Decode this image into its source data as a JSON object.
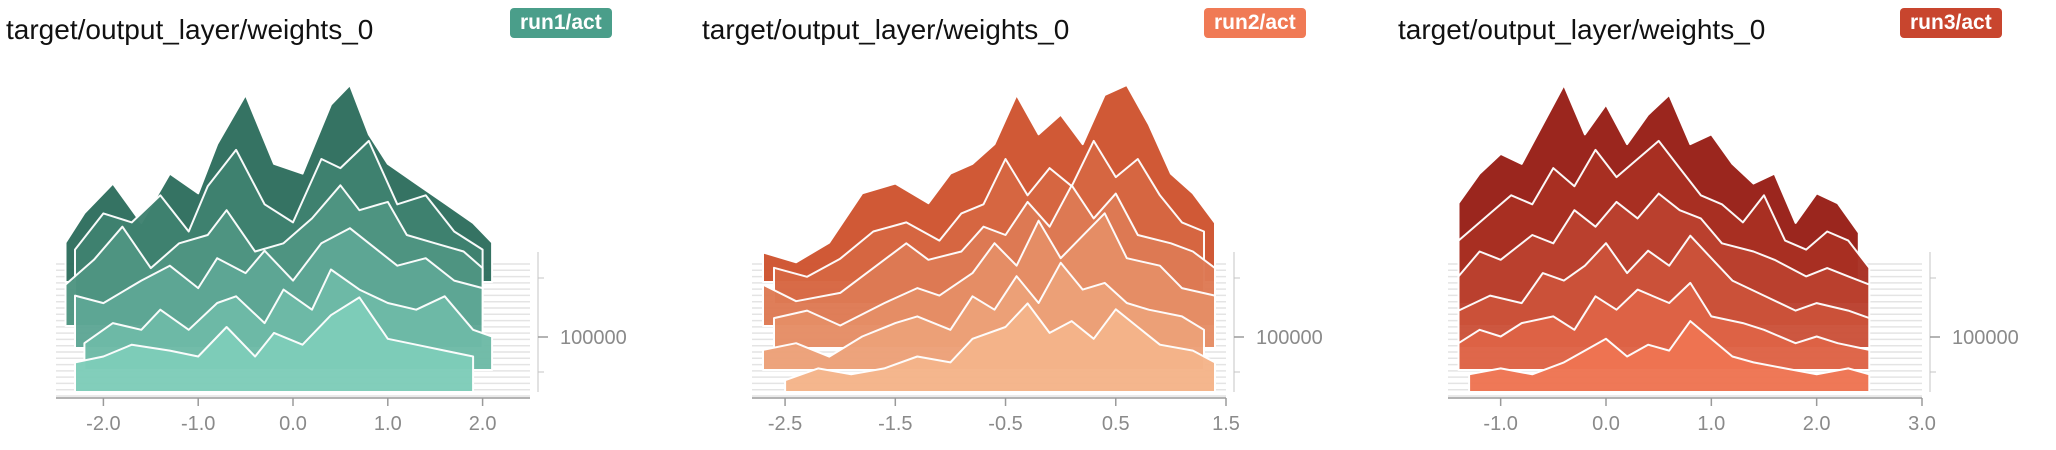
{
  "panels": [
    {
      "title": "target/output_layer/weights_0",
      "badge": "run1/act",
      "badge_color": "#4a9e8a",
      "color_back": "#2f6f5e",
      "color_front": "#7ecdb9"
    },
    {
      "title": "target/output_layer/weights_0",
      "badge": "run2/act",
      "badge_color": "#f07a55",
      "color_back": "#cf5430",
      "color_front": "#f5b48a"
    },
    {
      "title": "target/output_layer/weights_0",
      "badge": "run3/act",
      "badge_color": "#c8452e",
      "color_back": "#981f17",
      "color_front": "#ef7452"
    }
  ],
  "chart_data": [
    {
      "type": "area",
      "title": "target/output_layer/weights_0",
      "run": "run1/act",
      "x_ticks": [
        "-2.0",
        "-1.0",
        "0.0",
        "1.0",
        "2.0"
      ],
      "x_tick_values": [
        -2.0,
        -1.0,
        0.0,
        1.0,
        2.0
      ],
      "xlim": [
        -2.5,
        2.5
      ],
      "y_tick_labels": [
        "100000"
      ],
      "y_tick_values": [
        100000
      ],
      "ylim": [
        0,
        200000
      ],
      "series": [
        {
          "x": [
            -2.4,
            -2.2,
            -1.9,
            -1.6,
            -1.3,
            -1.0,
            -0.8,
            -0.5,
            -0.2,
            0.1,
            0.4,
            0.6,
            0.8,
            1.0,
            1.3,
            1.6,
            1.9,
            2.1
          ],
          "values": [
            0.2,
            0.35,
            0.5,
            0.3,
            0.55,
            0.45,
            0.7,
            0.95,
            0.6,
            0.55,
            0.9,
            1.0,
            0.75,
            0.6,
            0.5,
            0.4,
            0.3,
            0.2
          ]
        },
        {
          "x": [
            -2.3,
            -2.0,
            -1.7,
            -1.4,
            -1.1,
            -0.9,
            -0.6,
            -0.3,
            0.0,
            0.3,
            0.5,
            0.8,
            1.1,
            1.4,
            1.7,
            2.0
          ],
          "values": [
            0.3,
            0.5,
            0.45,
            0.6,
            0.4,
            0.65,
            0.85,
            0.55,
            0.45,
            0.8,
            0.75,
            0.9,
            0.55,
            0.6,
            0.4,
            0.3
          ]
        },
        {
          "x": [
            -2.4,
            -2.1,
            -1.8,
            -1.5,
            -1.2,
            -0.9,
            -0.7,
            -0.4,
            -0.1,
            0.2,
            0.5,
            0.7,
            1.0,
            1.2,
            1.5,
            1.8,
            2.0
          ],
          "values": [
            0.25,
            0.4,
            0.6,
            0.35,
            0.5,
            0.55,
            0.7,
            0.45,
            0.5,
            0.65,
            0.85,
            0.7,
            0.75,
            0.55,
            0.5,
            0.45,
            0.35
          ]
        },
        {
          "x": [
            -2.3,
            -2.0,
            -1.6,
            -1.3,
            -1.0,
            -0.8,
            -0.5,
            -0.3,
            0.0,
            0.3,
            0.6,
            0.9,
            1.1,
            1.4,
            1.7,
            2.0
          ],
          "values": [
            0.35,
            0.3,
            0.45,
            0.55,
            0.4,
            0.6,
            0.5,
            0.65,
            0.45,
            0.7,
            0.8,
            0.65,
            0.55,
            0.6,
            0.45,
            0.4
          ]
        },
        {
          "x": [
            -2.2,
            -1.9,
            -1.6,
            -1.4,
            -1.1,
            -0.8,
            -0.6,
            -0.3,
            -0.1,
            0.2,
            0.4,
            0.7,
            1.0,
            1.3,
            1.6,
            1.9,
            2.1
          ],
          "values": [
            0.2,
            0.35,
            0.3,
            0.45,
            0.3,
            0.5,
            0.55,
            0.35,
            0.6,
            0.45,
            0.75,
            0.6,
            0.5,
            0.45,
            0.55,
            0.3,
            0.25
          ]
        },
        {
          "x": [
            -2.3,
            -2.0,
            -1.7,
            -1.3,
            -1.0,
            -0.7,
            -0.4,
            -0.2,
            0.1,
            0.4,
            0.7,
            1.0,
            1.3,
            1.6,
            1.9
          ],
          "values": [
            0.25,
            0.3,
            0.4,
            0.35,
            0.3,
            0.55,
            0.3,
            0.5,
            0.4,
            0.65,
            0.8,
            0.45,
            0.4,
            0.35,
            0.3
          ]
        }
      ]
    },
    {
      "type": "area",
      "title": "target/output_layer/weights_0",
      "run": "run2/act",
      "x_ticks": [
        "-2.5",
        "-1.5",
        "-0.5",
        "0.5",
        "1.5"
      ],
      "x_tick_values": [
        -2.5,
        -1.5,
        -0.5,
        0.5,
        1.5
      ],
      "xlim": [
        -2.8,
        1.5
      ],
      "y_tick_labels": [
        "100000"
      ],
      "y_tick_values": [
        100000
      ],
      "ylim": [
        0,
        200000
      ],
      "series": [
        {
          "x": [
            -2.7,
            -2.4,
            -2.1,
            -1.8,
            -1.5,
            -1.2,
            -1.0,
            -0.8,
            -0.6,
            -0.4,
            -0.2,
            0.0,
            0.2,
            0.4,
            0.6,
            0.8,
            1.0,
            1.2,
            1.4
          ],
          "values": [
            0.15,
            0.1,
            0.2,
            0.45,
            0.5,
            0.4,
            0.55,
            0.6,
            0.7,
            0.95,
            0.75,
            0.85,
            0.7,
            0.95,
            1.0,
            0.8,
            0.55,
            0.45,
            0.3
          ]
        },
        {
          "x": [
            -2.6,
            -2.3,
            -2.0,
            -1.7,
            -1.4,
            -1.1,
            -0.9,
            -0.7,
            -0.5,
            -0.3,
            -0.1,
            0.1,
            0.3,
            0.5,
            0.7,
            0.9,
            1.1,
            1.3
          ],
          "values": [
            0.2,
            0.15,
            0.25,
            0.4,
            0.45,
            0.35,
            0.5,
            0.55,
            0.8,
            0.6,
            0.75,
            0.65,
            0.9,
            0.7,
            0.8,
            0.6,
            0.45,
            0.4
          ]
        },
        {
          "x": [
            -2.7,
            -2.4,
            -2.0,
            -1.7,
            -1.4,
            -1.2,
            -0.9,
            -0.7,
            -0.5,
            -0.3,
            -0.1,
            0.1,
            0.3,
            0.5,
            0.7,
            1.0,
            1.2,
            1.4
          ],
          "values": [
            0.25,
            0.15,
            0.2,
            0.35,
            0.5,
            0.4,
            0.45,
            0.6,
            0.55,
            0.75,
            0.6,
            0.85,
            0.65,
            0.8,
            0.55,
            0.5,
            0.45,
            0.35
          ]
        },
        {
          "x": [
            -2.6,
            -2.3,
            -2.0,
            -1.6,
            -1.3,
            -1.1,
            -0.8,
            -0.6,
            -0.4,
            -0.2,
            0.0,
            0.2,
            0.4,
            0.6,
            0.9,
            1.1,
            1.4
          ],
          "values": [
            0.2,
            0.25,
            0.15,
            0.3,
            0.4,
            0.35,
            0.5,
            0.7,
            0.55,
            0.85,
            0.6,
            0.75,
            0.9,
            0.6,
            0.55,
            0.4,
            0.35
          ]
        },
        {
          "x": [
            -2.7,
            -2.4,
            -2.1,
            -1.8,
            -1.5,
            -1.3,
            -1.0,
            -0.8,
            -0.6,
            -0.4,
            -0.2,
            0.0,
            0.2,
            0.4,
            0.6,
            0.8,
            1.1,
            1.3
          ],
          "values": [
            0.15,
            0.2,
            0.1,
            0.25,
            0.35,
            0.4,
            0.3,
            0.55,
            0.45,
            0.7,
            0.5,
            0.8,
            0.6,
            0.65,
            0.5,
            0.45,
            0.4,
            0.3
          ]
        },
        {
          "x": [
            -2.5,
            -2.2,
            -1.9,
            -1.6,
            -1.3,
            -1.0,
            -0.8,
            -0.5,
            -0.3,
            -0.1,
            0.1,
            0.3,
            0.5,
            0.7,
            0.9,
            1.2,
            1.4
          ],
          "values": [
            0.1,
            0.2,
            0.15,
            0.2,
            0.3,
            0.25,
            0.45,
            0.55,
            0.75,
            0.5,
            0.6,
            0.45,
            0.7,
            0.55,
            0.4,
            0.35,
            0.25
          ]
        }
      ]
    },
    {
      "type": "area",
      "title": "target/output_layer/weights_0",
      "run": "run3/act",
      "x_ticks": [
        "-1.0",
        "0.0",
        "1.0",
        "2.0",
        "3.0"
      ],
      "x_tick_values": [
        -1.0,
        0.0,
        1.0,
        2.0,
        3.0
      ],
      "xlim": [
        -1.5,
        3.0
      ],
      "y_tick_labels": [
        "100000"
      ],
      "y_tick_values": [
        100000
      ],
      "ylim": [
        0,
        200000
      ],
      "series": [
        {
          "x": [
            -1.4,
            -1.2,
            -1.0,
            -0.8,
            -0.6,
            -0.4,
            -0.2,
            0.0,
            0.2,
            0.4,
            0.6,
            0.8,
            1.0,
            1.2,
            1.4,
            1.6,
            1.8,
            2.0,
            2.2,
            2.4
          ],
          "values": [
            0.4,
            0.55,
            0.65,
            0.6,
            0.8,
            1.0,
            0.75,
            0.9,
            0.7,
            0.85,
            0.95,
            0.7,
            0.75,
            0.6,
            0.5,
            0.55,
            0.3,
            0.45,
            0.4,
            0.25
          ]
        },
        {
          "x": [
            -1.4,
            -1.1,
            -0.9,
            -0.7,
            -0.5,
            -0.3,
            -0.1,
            0.1,
            0.3,
            0.5,
            0.7,
            0.9,
            1.1,
            1.3,
            1.5,
            1.7,
            1.9,
            2.1,
            2.3,
            2.5
          ],
          "values": [
            0.35,
            0.5,
            0.6,
            0.55,
            0.75,
            0.65,
            0.85,
            0.7,
            0.8,
            0.9,
            0.75,
            0.6,
            0.55,
            0.45,
            0.6,
            0.35,
            0.3,
            0.4,
            0.35,
            0.2
          ]
        },
        {
          "x": [
            -1.4,
            -1.2,
            -1.0,
            -0.7,
            -0.5,
            -0.3,
            -0.1,
            0.1,
            0.3,
            0.5,
            0.7,
            0.9,
            1.1,
            1.4,
            1.6,
            1.9,
            2.1,
            2.3,
            2.5
          ],
          "values": [
            0.3,
            0.45,
            0.4,
            0.55,
            0.5,
            0.7,
            0.6,
            0.75,
            0.65,
            0.8,
            0.7,
            0.65,
            0.5,
            0.45,
            0.4,
            0.3,
            0.35,
            0.3,
            0.25
          ]
        },
        {
          "x": [
            -1.4,
            -1.1,
            -0.8,
            -0.6,
            -0.4,
            -0.2,
            0.0,
            0.2,
            0.4,
            0.6,
            0.8,
            1.0,
            1.2,
            1.5,
            1.8,
            2.0,
            2.3,
            2.5
          ],
          "values": [
            0.25,
            0.35,
            0.3,
            0.5,
            0.45,
            0.55,
            0.7,
            0.5,
            0.65,
            0.55,
            0.75,
            0.6,
            0.45,
            0.35,
            0.25,
            0.3,
            0.25,
            0.2
          ]
        },
        {
          "x": [
            -1.4,
            -1.2,
            -1.0,
            -0.8,
            -0.5,
            -0.3,
            -0.1,
            0.1,
            0.3,
            0.6,
            0.8,
            1.0,
            1.3,
            1.5,
            1.8,
            2.0,
            2.2,
            2.5
          ],
          "values": [
            0.2,
            0.3,
            0.25,
            0.35,
            0.4,
            0.3,
            0.55,
            0.45,
            0.6,
            0.5,
            0.65,
            0.4,
            0.35,
            0.3,
            0.2,
            0.25,
            0.2,
            0.15
          ]
        },
        {
          "x": [
            -1.3,
            -1.0,
            -0.7,
            -0.4,
            -0.2,
            0.0,
            0.2,
            0.4,
            0.6,
            0.8,
            1.0,
            1.2,
            1.4,
            1.7,
            2.0,
            2.3,
            2.5
          ],
          "values": [
            0.15,
            0.2,
            0.15,
            0.25,
            0.35,
            0.45,
            0.3,
            0.4,
            0.35,
            0.6,
            0.45,
            0.3,
            0.25,
            0.2,
            0.15,
            0.2,
            0.15
          ]
        }
      ]
    }
  ]
}
